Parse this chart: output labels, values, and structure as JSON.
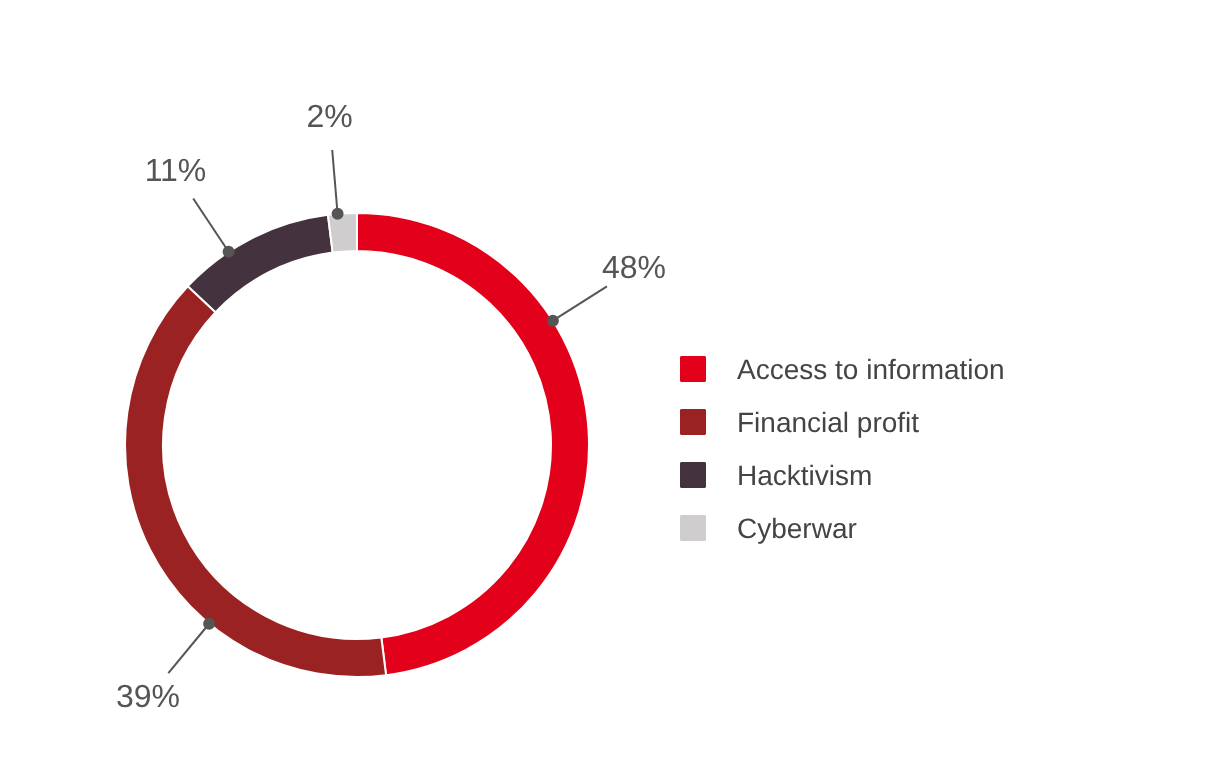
{
  "chart_data": {
    "type": "donut",
    "categories": [
      "Access to information",
      "Financial profit",
      "Hacktivism",
      "Cyberwar"
    ],
    "values": [
      48,
      39,
      11,
      2
    ],
    "colors": [
      "#e2001a",
      "#9b2222",
      "#45323f",
      "#d0cdcf"
    ],
    "value_labels": [
      "48%",
      "39%",
      "11%",
      "2%"
    ],
    "legend": "right"
  }
}
